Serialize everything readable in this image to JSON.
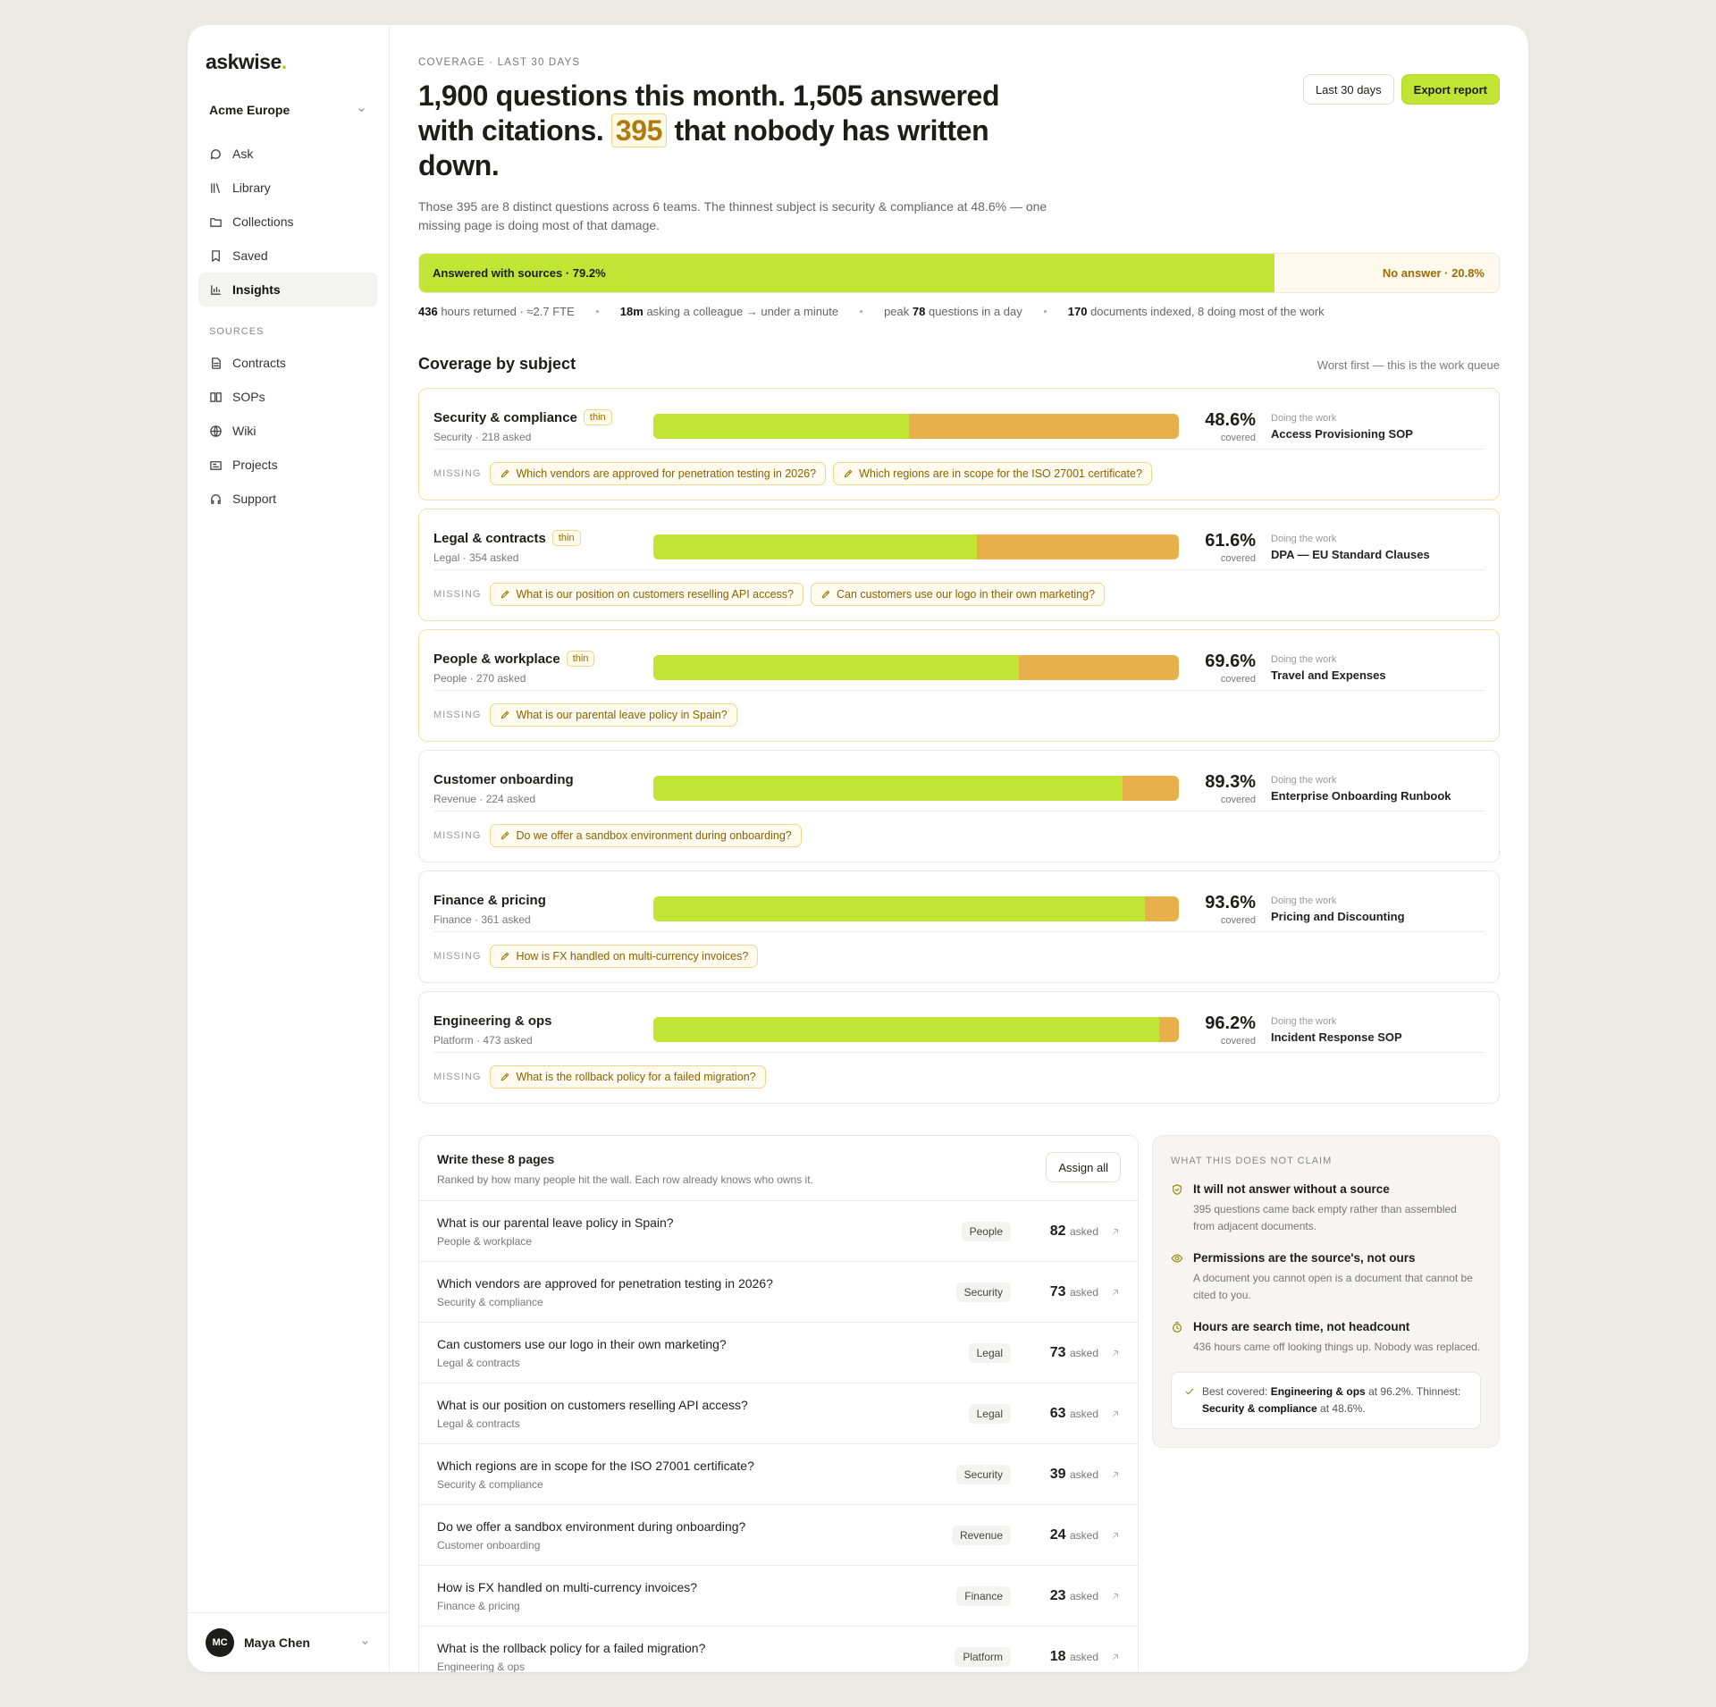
{
  "sidebar": {
    "logo": {
      "name": "askwise",
      "dot": "."
    },
    "workspace": "Acme Europe",
    "nav": [
      {
        "label": "Ask",
        "active": false
      },
      {
        "label": "Library",
        "active": false
      },
      {
        "label": "Collections",
        "active": false
      },
      {
        "label": "Saved",
        "active": false
      },
      {
        "label": "Insights",
        "active": true
      }
    ],
    "sources_label": "SOURCES",
    "sources": [
      "Contracts",
      "SOPs",
      "Wiki",
      "Projects",
      "Support"
    ],
    "user": {
      "initials": "MC",
      "name": "Maya Chen"
    }
  },
  "header": {
    "eyebrow": "COVERAGE · LAST 30 DAYS",
    "headline": {
      "before": "1,900 questions this month. 1,505 answered with citations. ",
      "highlight": "395",
      "after": " that nobody has written down."
    },
    "subtitle": "Those 395 are 8 distinct questions across 6 teams. The thinnest subject is security & compliance at 48.6% — one missing page is doing most of that damage.",
    "buttons": [
      "Last 30 days",
      "Export report"
    ]
  },
  "coverage_bar": {
    "answered": {
      "value": 79.2,
      "label": "Answered with sources · 79.2%"
    },
    "no_answer": {
      "value": 20.8,
      "label": "No answer · 20.8%"
    }
  },
  "stats": [
    [
      {
        "t": "436",
        "b": true
      },
      {
        "t": " hours returned · ≈2.7 FTE",
        "b": false
      }
    ],
    [
      {
        "t": "18m",
        "b": true
      },
      {
        "t": " asking a colleague → under a minute",
        "b": false
      }
    ],
    [
      {
        "t": "peak ",
        "b": false
      },
      {
        "t": "78",
        "b": true
      },
      {
        "t": " questions in a day",
        "b": false
      }
    ],
    [
      {
        "t": "170",
        "b": true
      },
      {
        "t": " documents indexed, 8 doing most of the work",
        "b": false
      }
    ]
  ],
  "subjects": {
    "title": "Coverage by subject",
    "note": "Worst first — this is the work queue",
    "covered_word": "covered",
    "doing_label": "Doing the work",
    "missing_label": "MISSING",
    "items": [
      {
        "name": "Security & compliance",
        "badge": "thin",
        "meta": "Security · 218 asked",
        "coverage": {
          "value": 48.6,
          "label": "48.6%"
        },
        "doing": "Access Provisioning SOP",
        "missing": [
          "Which vendors are approved for penetration testing in 2026?",
          "Which regions are in scope for the ISO 27001 certificate?"
        ]
      },
      {
        "name": "Legal & contracts",
        "badge": "thin",
        "meta": "Legal · 354 asked",
        "coverage": {
          "value": 61.6,
          "label": "61.6%"
        },
        "doing": "DPA — EU Standard Clauses",
        "missing": [
          "What is our position on customers reselling API access?",
          "Can customers use our logo in their own marketing?"
        ]
      },
      {
        "name": "People & workplace",
        "badge": "thin",
        "meta": "People · 270 asked",
        "coverage": {
          "value": 69.6,
          "label": "69.6%"
        },
        "doing": "Travel and Expenses",
        "missing": [
          "What is our parental leave policy in Spain?"
        ]
      },
      {
        "name": "Customer onboarding",
        "badge": null,
        "meta": "Revenue · 224 asked",
        "coverage": {
          "value": 89.3,
          "label": "89.3%"
        },
        "doing": "Enterprise Onboarding Runbook",
        "missing": [
          "Do we offer a sandbox environment during onboarding?"
        ]
      },
      {
        "name": "Finance & pricing",
        "badge": null,
        "meta": "Finance · 361 asked",
        "coverage": {
          "value": 93.6,
          "label": "93.6%"
        },
        "doing": "Pricing and Discounting",
        "missing": [
          "How is FX handled on multi-currency invoices?"
        ]
      },
      {
        "name": "Engineering & ops",
        "badge": null,
        "meta": "Platform · 473 asked",
        "coverage": {
          "value": 96.2,
          "label": "96.2%"
        },
        "doing": "Incident Response SOP",
        "missing": [
          "What is the rollback policy for a failed migration?"
        ]
      }
    ]
  },
  "pages": {
    "title": "Write these 8 pages",
    "subtitle": "Ranked by how many people hit the wall. Each row already knows who owns it.",
    "button": "Assign all",
    "asked_word": "asked",
    "rows": [
      {
        "question": "What is our parental leave policy in Spain?",
        "subject": "People & workplace",
        "tag": "People",
        "count": "82"
      },
      {
        "question": "Which vendors are approved for penetration testing in 2026?",
        "subject": "Security & compliance",
        "tag": "Security",
        "count": "73"
      },
      {
        "question": "Can customers use our logo in their own marketing?",
        "subject": "Legal & contracts",
        "tag": "Legal",
        "count": "73"
      },
      {
        "question": "What is our position on customers reselling API access?",
        "subject": "Legal & contracts",
        "tag": "Legal",
        "count": "63"
      },
      {
        "question": "Which regions are in scope for the ISO 27001 certificate?",
        "subject": "Security & compliance",
        "tag": "Security",
        "count": "39"
      },
      {
        "question": "Do we offer a sandbox environment during onboarding?",
        "subject": "Customer onboarding",
        "tag": "Revenue",
        "count": "24"
      },
      {
        "question": "How is FX handled on multi-currency invoices?",
        "subject": "Finance & pricing",
        "tag": "Finance",
        "count": "23"
      },
      {
        "question": "What is the rollback policy for a failed migration?",
        "subject": "Engineering & ops",
        "tag": "Platform",
        "count": "18"
      }
    ]
  },
  "claims": {
    "label": "WHAT THIS DOES NOT CLAIM",
    "items": [
      {
        "title": "It will not answer without a source",
        "text": "395 questions came back empty rather than assembled from adjacent documents."
      },
      {
        "title": "Permissions are the source's, not ours",
        "text": "A document you cannot open is a document that cannot be cited to you."
      },
      {
        "title": "Hours are search time, not headcount",
        "text": "436 hours came off looking things up. Nobody was replaced."
      }
    ],
    "footer": [
      {
        "t": "Best covered: ",
        "b": false
      },
      {
        "t": "Engineering & ops",
        "b": true
      },
      {
        "t": " at 96.2%. Thinnest: ",
        "b": false
      },
      {
        "t": "Security & compliance",
        "b": true
      },
      {
        "t": " at 48.6%.",
        "b": false
      }
    ]
  }
}
